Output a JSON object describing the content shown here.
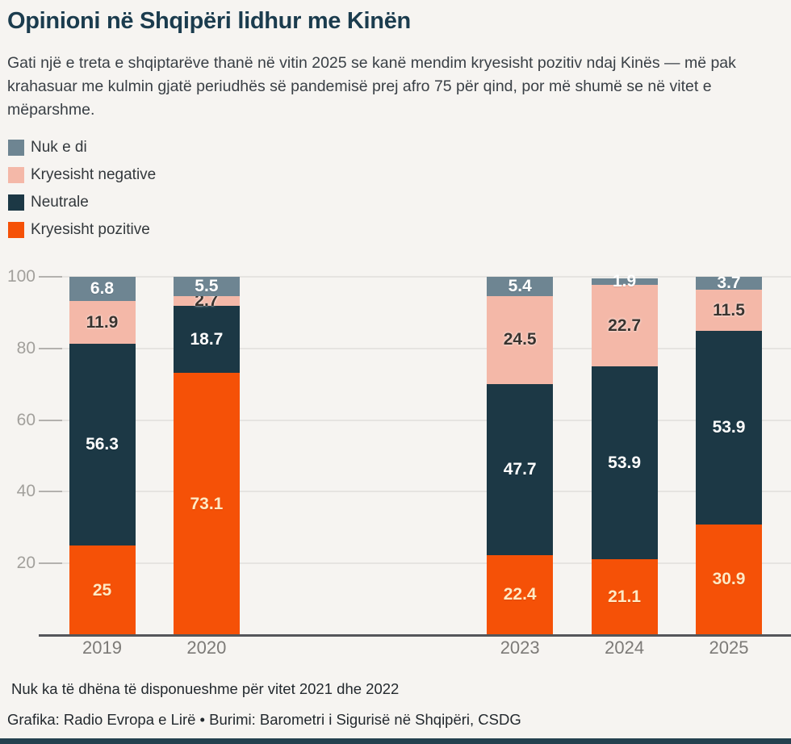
{
  "page": {
    "background": "#f6f4f1",
    "bottom_bar_color": "#24414f"
  },
  "header": {
    "title": "Opinioni në Shqipëri lidhur me Kinën",
    "subtitle": "Gati një e treta e shqiptarëve thanë në vitin 2025 se kanë mendim kryesisht pozitiv ndaj Kinës — më pak krahasuar me kulmin gjatë periudhës së pandemisë prej afro 75 për qind, por më shumë se në vitet e mëparshme."
  },
  "legend": {
    "items": [
      {
        "label": "Nuk e di",
        "color": "#6e8592"
      },
      {
        "label": "Kryesisht negative",
        "color": "#f4b8a8"
      },
      {
        "label": "Neutrale",
        "color": "#1c3845"
      },
      {
        "label": "Kryesisht pozitive",
        "color": "#f55107"
      }
    ]
  },
  "chart_data": {
    "type": "bar",
    "stacked": true,
    "title": "Opinioni në Shqipëri lidhur me Kinën",
    "xlabel": "",
    "ylabel": "",
    "ylim": [
      0,
      100
    ],
    "yticks": [
      20,
      40,
      60,
      80,
      100
    ],
    "grid": true,
    "legend_position": "top-left",
    "categories": [
      "2019",
      "2020",
      "2023",
      "2024",
      "2025"
    ],
    "category_slots": [
      0,
      1,
      4,
      5,
      6
    ],
    "total_slots": 7,
    "missing_years_note": "2021 dhe 2022 pa të dhëna",
    "series": [
      {
        "name": "Kryesisht pozitive",
        "color": "#f55107",
        "label_color": "#ffe9c4",
        "label_style": "light",
        "values": [
          25,
          73.1,
          22.4,
          21.1,
          30.9
        ],
        "labels": [
          "25",
          "73.1",
          "22.4",
          "21.1",
          "30.9"
        ]
      },
      {
        "name": "Neutrale",
        "color": "#1c3845",
        "label_color": "#ffffff",
        "label_style": "light",
        "values": [
          56.3,
          18.7,
          47.7,
          53.9,
          53.9
        ],
        "labels": [
          "56.3",
          "18.7",
          "47.7",
          "53.9",
          "53.9"
        ]
      },
      {
        "name": "Kryesisht negative",
        "color": "#f4b8a8",
        "label_color": "#3a332e",
        "label_style": "dark",
        "values": [
          11.9,
          2.7,
          24.5,
          22.7,
          11.5
        ],
        "labels": [
          "11.9",
          "2.7",
          "24.5",
          "22.7",
          "11.5"
        ]
      },
      {
        "name": "Nuk e di",
        "color": "#6e8592",
        "label_color": "#ffffff",
        "label_style": "light",
        "values": [
          6.8,
          5.5,
          5.4,
          1.9,
          3.7
        ],
        "labels": [
          "6.8",
          "5.5",
          "5.4",
          "1.9",
          "3.7"
        ]
      }
    ]
  },
  "footer": {
    "note": "Nuk ka të dhëna të disponueshme për vitet 2021 dhe 2022",
    "credit": "Grafika: Radio Evropa e Lirë • Burimi: Barometri i Sigurisë në Shqipëri, CSDG"
  }
}
